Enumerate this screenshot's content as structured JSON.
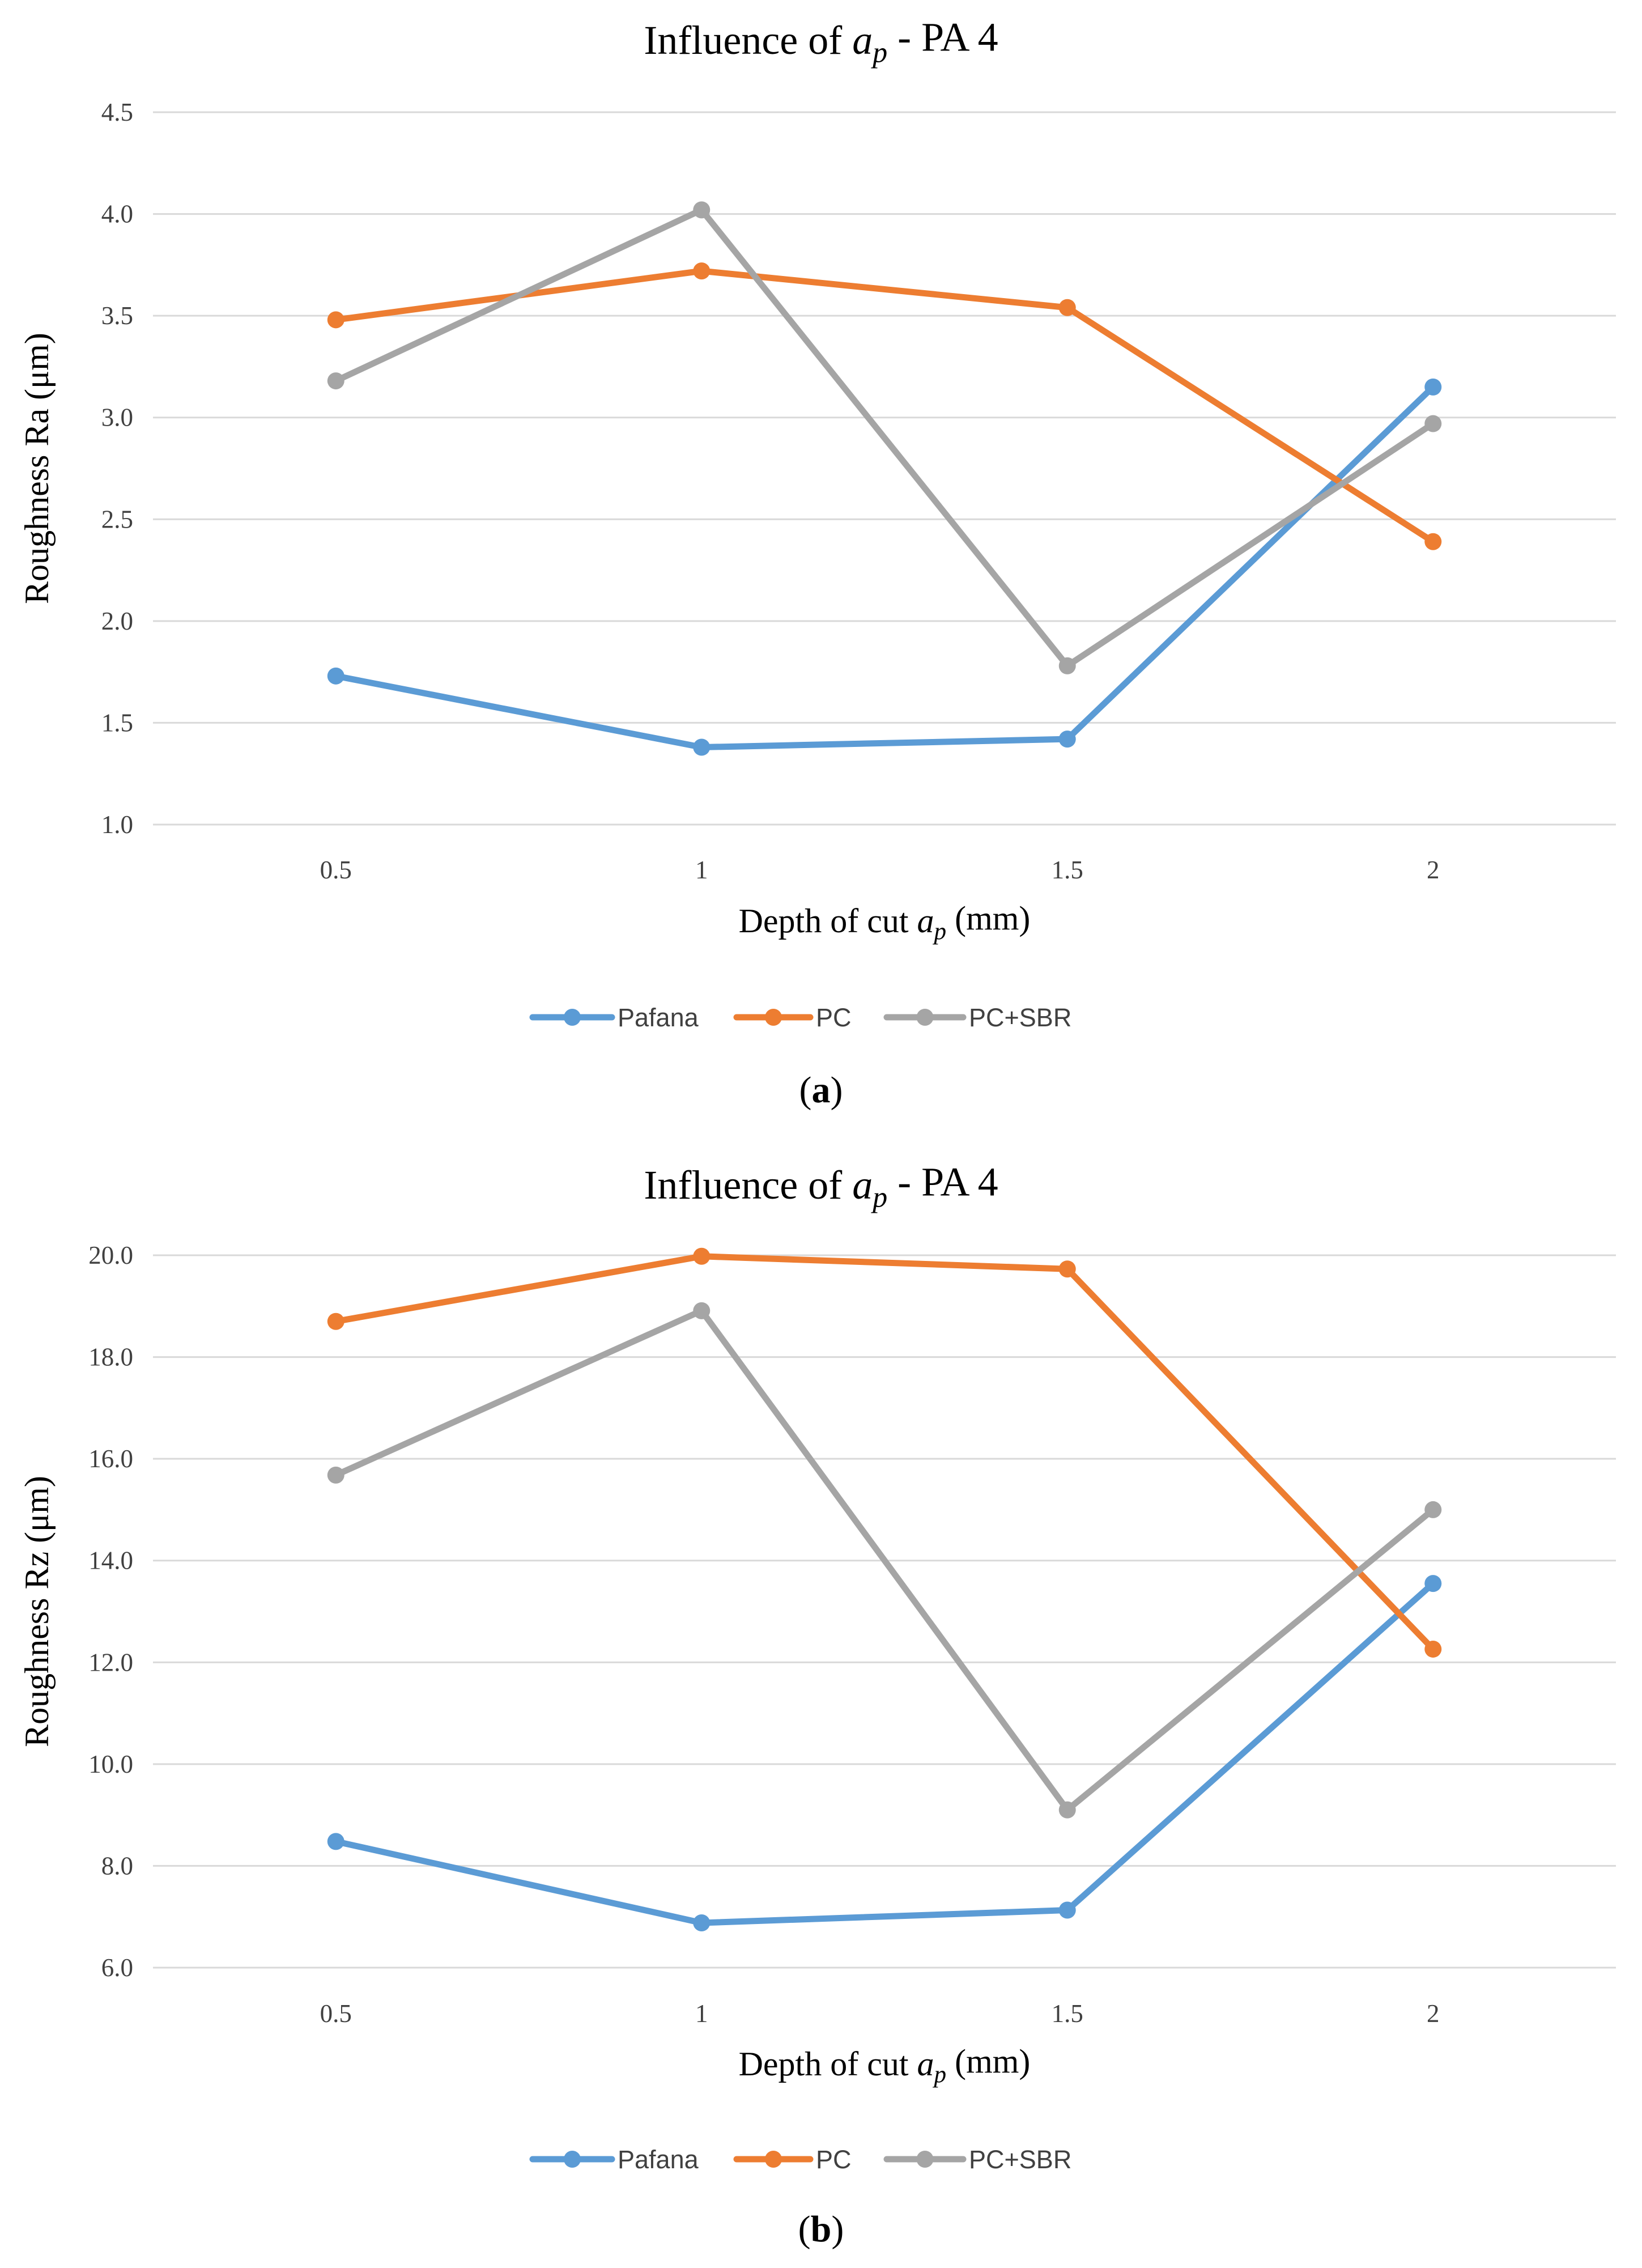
{
  "colors": {
    "Pafana": "#5b9bd5",
    "PC": "#ed7d31",
    "PC+SBR": "#a5a5a5"
  },
  "chart_data": [
    {
      "type": "line",
      "panel": "a",
      "title": {
        "pre": "Influence of ",
        "var": "a",
        "sub": "p",
        "post": " - PA 4"
      },
      "xlabel": {
        "pre": "Depth of cut ",
        "var": "a",
        "sub": "p",
        "post": " (mm)"
      },
      "ylabel": "Roughness Ra (μm)",
      "categories": [
        "0.5",
        "1",
        "1.5",
        "2"
      ],
      "ylim": [
        1.0,
        4.5
      ],
      "ystep": 0.5,
      "yticks": [
        "1.0",
        "1.5",
        "2.0",
        "2.5",
        "3.0",
        "3.5",
        "4.0",
        "4.5"
      ],
      "grid": true,
      "legend": "bottom-center",
      "series": [
        {
          "name": "Pafana",
          "values": [
            1.73,
            1.38,
            1.42,
            3.15
          ]
        },
        {
          "name": "PC",
          "values": [
            3.48,
            3.72,
            3.54,
            2.39
          ]
        },
        {
          "name": "PC+SBR",
          "values": [
            3.18,
            4.02,
            1.78,
            2.97
          ]
        }
      ]
    },
    {
      "type": "line",
      "panel": "b",
      "title": {
        "pre": "Influence of ",
        "var": "a",
        "sub": "p",
        "post": " - PA 4"
      },
      "xlabel": {
        "pre": "Depth of cut ",
        "var": "a",
        "sub": "p",
        "post": " (mm)"
      },
      "ylabel": "Roughness Rz (μm)",
      "categories": [
        "0.5",
        "1",
        "1.5",
        "2"
      ],
      "ylim": [
        6.0,
        20.0
      ],
      "ystep": 2.0,
      "yticks": [
        "6.0",
        "8.0",
        "10.0",
        "12.0",
        "14.0",
        "16.0",
        "18.0",
        "20.0"
      ],
      "grid": true,
      "legend": "bottom-center",
      "series": [
        {
          "name": "Pafana",
          "values": [
            8.48,
            6.88,
            7.13,
            13.55
          ]
        },
        {
          "name": "PC",
          "values": [
            18.7,
            19.98,
            19.73,
            12.26
          ]
        },
        {
          "name": "PC+SBR",
          "values": [
            15.68,
            18.91,
            9.1,
            15.0
          ]
        }
      ]
    }
  ],
  "captions": {
    "a": "(a)",
    "b": "(b)"
  }
}
